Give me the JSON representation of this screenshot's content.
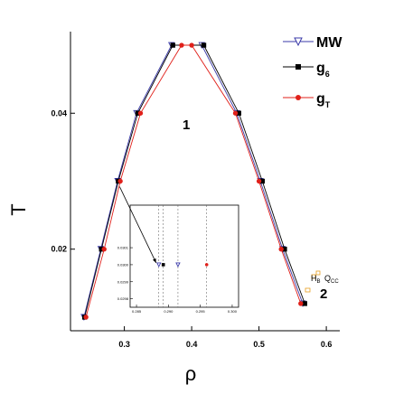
{
  "chart_data": {
    "type": "line",
    "xlabel": "ρ",
    "ylabel": "T",
    "xlim": [
      0.22,
      0.62
    ],
    "ylim": [
      0.008,
      0.052
    ],
    "x_ticks": [
      "0.3",
      "0.4",
      "0.5",
      "0.6"
    ],
    "y_ticks": [
      "0.02",
      "0.04"
    ],
    "legend_position": "top-right",
    "series": [
      {
        "name": "MW",
        "marker": "triangle-down-open",
        "color": "#3a3aa8",
        "points": [
          [
            0.24,
            0.01
          ],
          [
            0.265,
            0.02
          ],
          [
            0.29,
            0.03
          ],
          [
            0.318,
            0.04
          ],
          [
            0.37,
            0.05
          ],
          [
            0.415,
            0.05
          ],
          [
            0.467,
            0.04
          ],
          [
            0.502,
            0.03
          ],
          [
            0.535,
            0.02
          ],
          [
            0.565,
            0.012
          ]
        ]
      },
      {
        "name": "g",
        "subscript": "6",
        "marker": "square-filled",
        "color": "#000000",
        "points": [
          [
            0.241,
            0.01
          ],
          [
            0.266,
            0.02
          ],
          [
            0.291,
            0.03
          ],
          [
            0.32,
            0.04
          ],
          [
            0.372,
            0.05
          ],
          [
            0.418,
            0.05
          ],
          [
            0.47,
            0.04
          ],
          [
            0.505,
            0.03
          ],
          [
            0.538,
            0.02
          ],
          [
            0.568,
            0.012
          ]
        ]
      },
      {
        "name": "g",
        "subscript": "T",
        "marker": "circle-filled",
        "color": "#e0201a",
        "points": [
          [
            0.243,
            0.01
          ],
          [
            0.27,
            0.02
          ],
          [
            0.294,
            0.03
          ],
          [
            0.324,
            0.04
          ],
          [
            0.385,
            0.05
          ],
          [
            0.4,
            0.05
          ],
          [
            0.465,
            0.04
          ],
          [
            0.5,
            0.03
          ],
          [
            0.533,
            0.02
          ],
          [
            0.562,
            0.012
          ]
        ]
      }
    ],
    "annotations": [
      {
        "text": "1"
      },
      {
        "text": "2"
      },
      {
        "text": "H",
        "subscript": "B",
        "color": "#e8a020"
      },
      {
        "text": "Q",
        "subscript": "CC",
        "color": "#c0207a"
      }
    ],
    "inset": {
      "xlim": [
        0.284,
        0.301
      ],
      "ylim": [
        0.02975,
        0.03035
      ],
      "x_ticks": [
        "0.285",
        "0.290",
        "0.295",
        "0.300"
      ],
      "y_ticks": [
        "0.0298",
        "0.0299",
        "0.0300",
        "0.0301"
      ],
      "points": [
        {
          "series": "MW",
          "x": 0.2885,
          "y": 0.03
        },
        {
          "series": "g6",
          "x": 0.2892,
          "y": 0.03
        },
        {
          "series": "MW",
          "x": 0.2915,
          "y": 0.03
        },
        {
          "series": "gT",
          "x": 0.296,
          "y": 0.03
        }
      ],
      "dashed_x": [
        0.2885,
        0.2892,
        0.2915,
        0.296
      ]
    }
  }
}
